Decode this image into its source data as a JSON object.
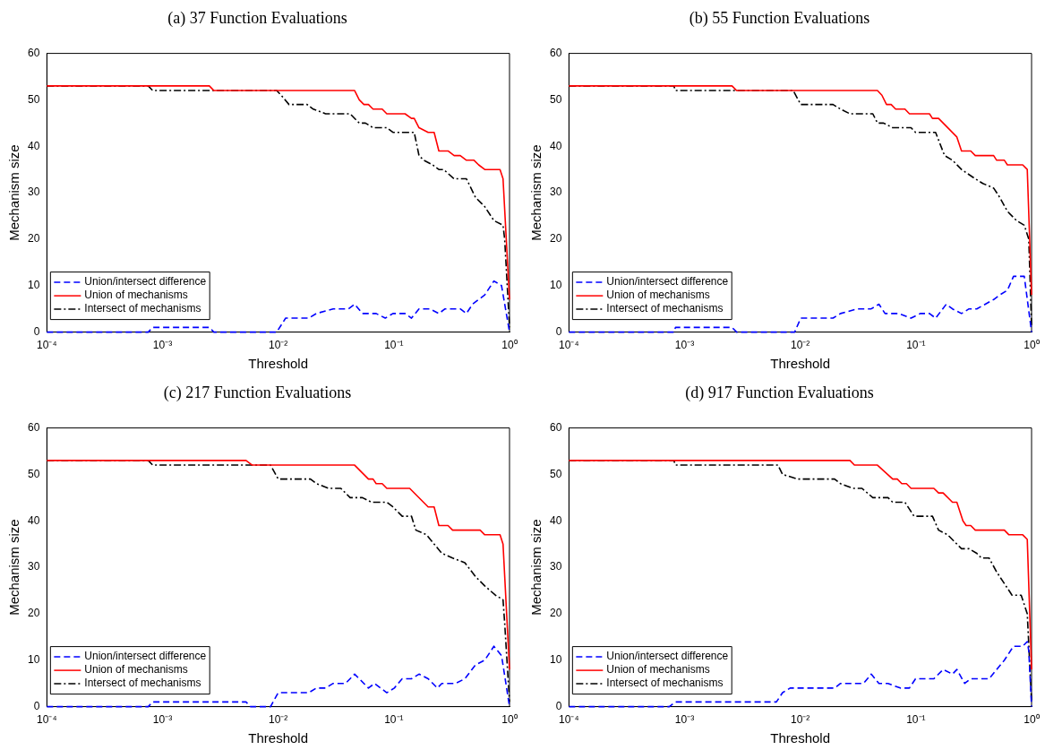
{
  "chart_data": [
    {
      "type": "line",
      "title": "(a) 37 Function Evaluations",
      "xlabel": "Threshold",
      "ylabel": "Mechanism size",
      "log": "x",
      "legend": "bottom left",
      "xlim": [
        0.0001,
        1
      ],
      "xticks": [
        {
          "value": 0.0001,
          "label": "10⁻⁴"
        },
        {
          "value": 0.001,
          "label": "10⁻³"
        },
        {
          "value": 0.01,
          "label": "10⁻²"
        },
        {
          "value": 0.1,
          "label": "10⁻¹"
        },
        {
          "value": 1,
          "label": "10⁰"
        }
      ],
      "ylim": [
        0,
        60
      ],
      "yticks": [
        0,
        10,
        20,
        30,
        40,
        50,
        60
      ],
      "series": [
        {
          "name": "Union/intersect difference",
          "color": "#0000ff",
          "line_style": "dashed",
          "x": [
            0.0001,
            0.000752,
            0.000822,
            0.00254,
            0.00278,
            0.0097,
            0.0116,
            0.0184,
            0.0214,
            0.0299,
            0.0405,
            0.0458,
            0.0535,
            0.0703,
            0.0843,
            0.0982,
            0.125,
            0.142,
            0.165,
            0.204,
            0.245,
            0.277,
            0.375,
            0.424,
            0.479,
            0.611,
            0.733,
            0.853,
            1
          ],
          "values": [
            0,
            0,
            1,
            1,
            0,
            0,
            3,
            3,
            4,
            5,
            5,
            6,
            4,
            4,
            3,
            4,
            4,
            3,
            5,
            5,
            4,
            5,
            5,
            4,
            6,
            8,
            11,
            10,
            0
          ]
        },
        {
          "name": "Union of mechanisms",
          "color": "#ff0000",
          "line_style": "solid",
          "x": [
            0.0001,
            0.00254,
            0.00278,
            0.0458,
            0.0502,
            0.0551,
            0.0603,
            0.0661,
            0.0793,
            0.0869,
            0.125,
            0.142,
            0.15,
            0.165,
            0.198,
            0.223,
            0.245,
            0.294,
            0.332,
            0.375,
            0.424,
            0.493,
            0.541,
            0.611,
            0.828,
            0.879,
            1
          ],
          "values": [
            53,
            53,
            52,
            52,
            50,
            49,
            49,
            48,
            48,
            47,
            47,
            46,
            46,
            44,
            43,
            43,
            39,
            39,
            38,
            38,
            37,
            37,
            36,
            35,
            35,
            33,
            7
          ]
        },
        {
          "name": "Intersect of mechanisms",
          "color": "#000000",
          "line_style": "dashdot",
          "x": [
            0.0001,
            0.000752,
            0.000822,
            0.0097,
            0.0106,
            0.0124,
            0.0178,
            0.0201,
            0.0257,
            0.0419,
            0.0502,
            0.0568,
            0.0661,
            0.0869,
            0.0982,
            0.15,
            0.165,
            0.181,
            0.217,
            0.245,
            0.269,
            0.332,
            0.424,
            0.508,
            0.611,
            0.733,
            0.879,
            0.908,
            1
          ],
          "values": [
            53,
            53,
            52,
            52,
            51,
            49,
            49,
            48,
            47,
            47,
            45,
            45,
            44,
            44,
            43,
            43,
            38,
            37,
            36,
            35,
            35,
            33,
            33,
            29,
            27,
            24,
            23,
            20,
            1
          ]
        }
      ]
    },
    {
      "type": "line",
      "title": "(b) 55 Function Evaluations",
      "xlabel": "Threshold",
      "ylabel": "Mechanism size",
      "log": "x",
      "legend": "bottom left",
      "xlim": [
        0.0001,
        1
      ],
      "xticks": [
        {
          "value": 0.0001,
          "label": "10⁻⁴"
        },
        {
          "value": 0.001,
          "label": "10⁻³"
        },
        {
          "value": 0.01,
          "label": "10⁻²"
        },
        {
          "value": 0.1,
          "label": "10⁻¹"
        },
        {
          "value": 1,
          "label": "10⁰"
        }
      ],
      "ylim": [
        0,
        60
      ],
      "yticks": [
        0,
        10,
        20,
        30,
        40,
        50,
        60
      ],
      "series": [
        {
          "name": "Union/intersect difference",
          "color": "#0000ff",
          "line_style": "dashed",
          "x": [
            0.0001,
            0.000807,
            0.000834,
            0.00257,
            0.00282,
            0.00895,
            0.0101,
            0.0192,
            0.0223,
            0.0313,
            0.0411,
            0.0479,
            0.0541,
            0.0711,
            0.0908,
            0.109,
            0.131,
            0.148,
            0.183,
            0.207,
            0.248,
            0.288,
            0.336,
            0.47,
            0.531,
            0.618,
            0.698,
            0.865,
            1
          ],
          "values": [
            0,
            0,
            1,
            1,
            0,
            0,
            3,
            3,
            4,
            5,
            5,
            6,
            4,
            4,
            3,
            4,
            4,
            3,
            6,
            5,
            4,
            5,
            5,
            7,
            8,
            9,
            12,
            12,
            0
          ]
        },
        {
          "name": "Union of mechanisms",
          "color": "#ff0000",
          "line_style": "solid",
          "x": [
            0.0001,
            0.00257,
            0.00282,
            0.0465,
            0.0508,
            0.0557,
            0.0611,
            0.0668,
            0.0804,
            0.0879,
            0.131,
            0.139,
            0.157,
            0.226,
            0.248,
            0.298,
            0.326,
            0.47,
            0.499,
            0.582,
            0.618,
            0.838,
            0.918,
            1
          ],
          "values": [
            53,
            53,
            52,
            52,
            51,
            49,
            49,
            48,
            48,
            47,
            47,
            46,
            46,
            42,
            39,
            39,
            38,
            38,
            37,
            37,
            36,
            36,
            35,
            8
          ]
        },
        {
          "name": "Intersect of mechanisms",
          "color": "#000000",
          "line_style": "dashdot",
          "x": [
            0.0001,
            0.000807,
            0.000834,
            0.00869,
            0.0101,
            0.0192,
            0.0223,
            0.0269,
            0.0424,
            0.0465,
            0.0525,
            0.063,
            0.0908,
            0.0993,
            0.148,
            0.177,
            0.207,
            0.248,
            0.326,
            0.379,
            0.47,
            0.531,
            0.618,
            0.741,
            0.865,
            0.946,
            1
          ],
          "values": [
            53,
            53,
            52,
            52,
            49,
            49,
            48,
            47,
            47,
            45,
            45,
            44,
            44,
            43,
            43,
            38,
            37,
            35,
            33,
            32,
            31,
            29,
            26,
            24,
            23,
            20,
            1
          ]
        }
      ]
    },
    {
      "type": "line",
      "title": "(c) 217 Function Evaluations",
      "xlabel": "Threshold",
      "ylabel": "Mechanism size",
      "log": "x",
      "legend": "bottom left",
      "xlim": [
        0.0001,
        1
      ],
      "xticks": [
        {
          "value": 0.0001,
          "label": "10⁻⁴"
        },
        {
          "value": 0.001,
          "label": "10⁻³"
        },
        {
          "value": 0.01,
          "label": "10⁻²"
        },
        {
          "value": 0.1,
          "label": "10⁻¹"
        },
        {
          "value": 1,
          "label": "10⁰"
        }
      ],
      "ylim": [
        0,
        60
      ],
      "yticks": [
        0,
        10,
        20,
        30,
        40,
        50,
        60
      ],
      "series": [
        {
          "name": "Union/intersect difference",
          "color": "#0000ff",
          "line_style": "dashed",
          "x": [
            0.0001,
            0.000752,
            0.000822,
            0.00527,
            0.00578,
            0.00859,
            0.01,
            0.0184,
            0.0214,
            0.0257,
            0.0299,
            0.0382,
            0.0458,
            0.0603,
            0.0681,
            0.0869,
            0.101,
            0.118,
            0.142,
            0.165,
            0.198,
            0.238,
            0.26,
            0.342,
            0.411,
            0.508,
            0.611,
            0.733,
            0.853,
            1
          ],
          "values": [
            0,
            0,
            1,
            1,
            0,
            0,
            3,
            3,
            4,
            4,
            5,
            5,
            7,
            4,
            5,
            3,
            4,
            6,
            6,
            7,
            6,
            4,
            5,
            5,
            6,
            9,
            10,
            13,
            11,
            0
          ]
        },
        {
          "name": "Union of mechanisms",
          "color": "#ff0000",
          "line_style": "solid",
          "x": [
            0.0001,
            0.00527,
            0.00596,
            0.0458,
            0.0603,
            0.0661,
            0.0703,
            0.0793,
            0.0869,
            0.137,
            0.198,
            0.223,
            0.245,
            0.294,
            0.322,
            0.557,
            0.611,
            0.828,
            0.879,
            1
          ],
          "values": [
            53,
            53,
            52,
            52,
            49,
            49,
            48,
            48,
            47,
            47,
            43,
            43,
            39,
            39,
            38,
            38,
            37,
            37,
            35,
            8
          ]
        },
        {
          "name": "Intersect of mechanisms",
          "color": "#000000",
          "line_style": "dashdot",
          "x": [
            0.0001,
            0.000752,
            0.000822,
            0.00859,
            0.01,
            0.019,
            0.0214,
            0.0274,
            0.0348,
            0.0419,
            0.0535,
            0.0641,
            0.0869,
            0.0982,
            0.118,
            0.142,
            0.155,
            0.192,
            0.223,
            0.26,
            0.322,
            0.411,
            0.508,
            0.611,
            0.755,
            0.879,
            0.908,
            1
          ],
          "values": [
            53,
            53,
            52,
            52,
            49,
            49,
            48,
            47,
            47,
            45,
            45,
            44,
            44,
            43,
            41,
            41,
            38,
            37,
            35,
            33,
            32,
            31,
            28,
            26,
            24,
            23,
            18,
            1
          ]
        }
      ]
    },
    {
      "type": "line",
      "title": "(d) 917 Function Evaluations",
      "xlabel": "Threshold",
      "ylabel": "Mechanism size",
      "log": "x",
      "legend": "bottom left",
      "xlim": [
        0.0001,
        1
      ],
      "xticks": [
        {
          "value": 0.0001,
          "label": "10⁻⁴"
        },
        {
          "value": 0.001,
          "label": "10⁻³"
        },
        {
          "value": 0.01,
          "label": "10⁻²"
        },
        {
          "value": 0.1,
          "label": "10⁻¹"
        },
        {
          "value": 1,
          "label": "10⁰"
        }
      ],
      "ylim": [
        0,
        60
      ],
      "yticks": [
        0,
        10,
        20,
        30,
        40,
        50,
        60
      ],
      "series": [
        {
          "name": "Union/intersect difference",
          "color": "#0000ff",
          "line_style": "dashed",
          "x": [
            0.0001,
            0.000738,
            0.000834,
            0.00622,
            0.00703,
            0.00818,
            0.0198,
            0.0223,
            0.0353,
            0.0411,
            0.0479,
            0.0574,
            0.0733,
            0.0879,
            0.0993,
            0.143,
            0.172,
            0.207,
            0.226,
            0.264,
            0.298,
            0.429,
            0.499,
            0.582,
            0.698,
            0.838,
            0.918,
            0.946,
            1
          ],
          "values": [
            0,
            0,
            1,
            1,
            3,
            4,
            4,
            5,
            5,
            7,
            5,
            5,
            4,
            4,
            6,
            6,
            8,
            7,
            8,
            5,
            6,
            6,
            8,
            10,
            13,
            13,
            14,
            12,
            0
          ]
        },
        {
          "name": "Union of mechanisms",
          "color": "#ff0000",
          "line_style": "solid",
          "x": [
            0.0001,
            0.0269,
            0.0294,
            0.0465,
            0.063,
            0.069,
            0.0755,
            0.0828,
            0.0908,
            0.143,
            0.157,
            0.172,
            0.207,
            0.226,
            0.255,
            0.272,
            0.298,
            0.326,
            0.582,
            0.637,
            0.838,
            0.918,
            1
          ],
          "values": [
            53,
            53,
            52,
            52,
            49,
            49,
            48,
            48,
            47,
            47,
            46,
            46,
            44,
            44,
            40,
            39,
            39,
            38,
            38,
            37,
            37,
            36,
            8
          ]
        },
        {
          "name": "Intersect of mechanisms",
          "color": "#000000",
          "line_style": "dashdot",
          "x": [
            0.0001,
            0.000807,
            0.000834,
            0.00641,
            0.00703,
            0.00953,
            0.0198,
            0.0223,
            0.0285,
            0.0342,
            0.0424,
            0.0574,
            0.063,
            0.0804,
            0.0964,
            0.139,
            0.157,
            0.188,
            0.248,
            0.288,
            0.336,
            0.368,
            0.429,
            0.499,
            0.564,
            0.678,
            0.813,
            0.918,
            1
          ],
          "values": [
            53,
            53,
            52,
            52,
            50,
            49,
            49,
            48,
            47,
            47,
            45,
            45,
            44,
            44,
            41,
            41,
            38,
            37,
            34,
            34,
            33,
            32,
            32,
            29,
            27,
            24,
            24,
            20,
            1
          ]
        }
      ]
    }
  ]
}
